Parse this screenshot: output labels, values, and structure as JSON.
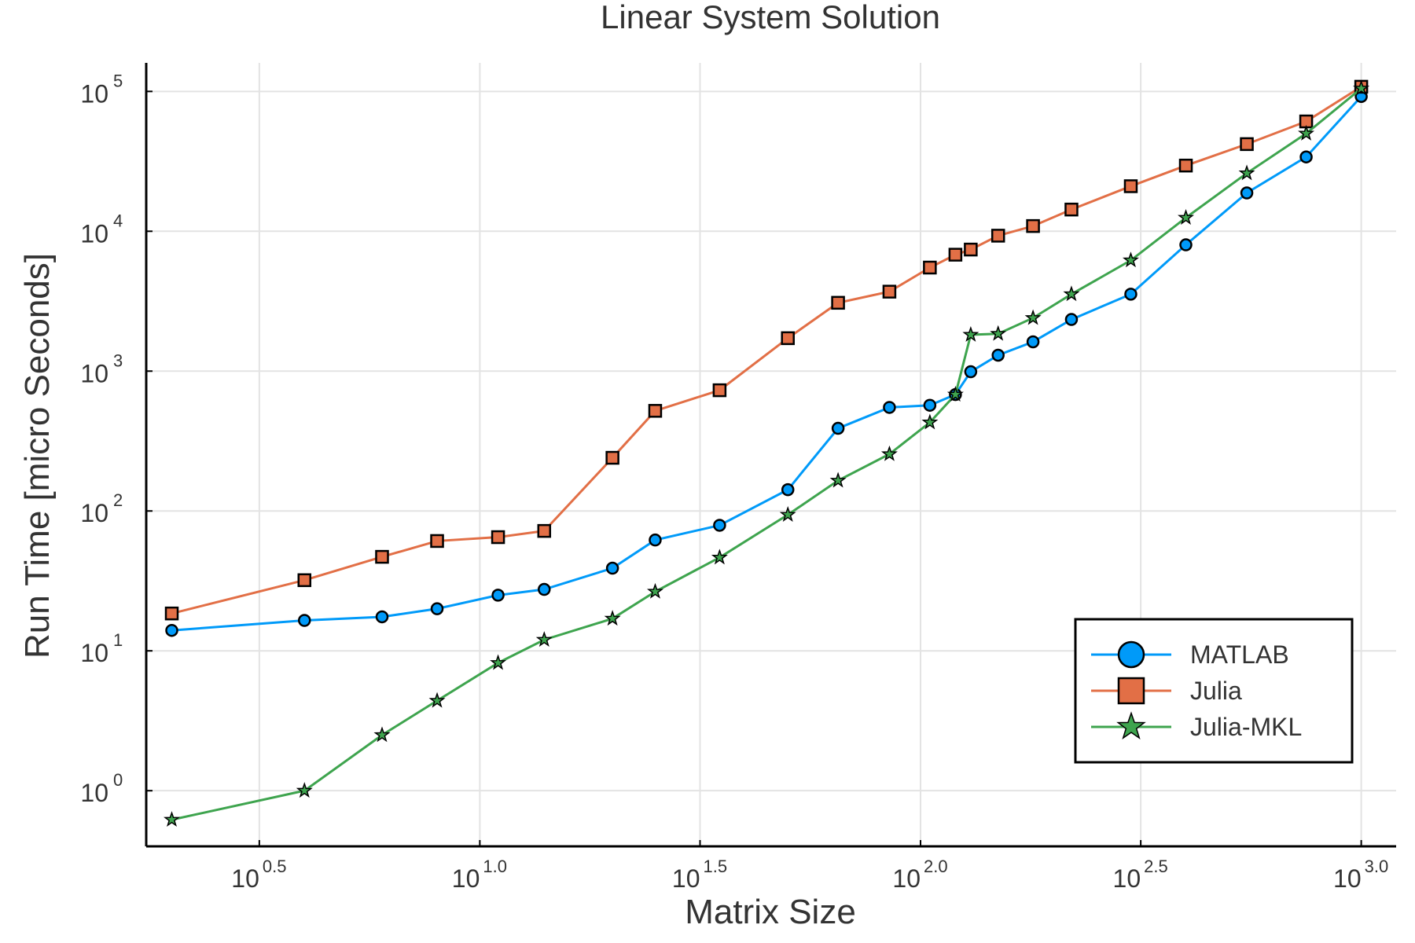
{
  "chart_data": {
    "type": "line",
    "title": "Linear System Solution",
    "xlabel": "Matrix Size",
    "ylabel": "Run Time  [micro Seconds]",
    "xscale": "log10",
    "yscale": "log10",
    "xlim": [
      1.75,
      1200
    ],
    "ylim": [
      0.4,
      160000
    ],
    "xticks": [
      {
        "base": "10",
        "exp": "0.5",
        "value": 3.16
      },
      {
        "base": "10",
        "exp": "1.0",
        "value": 10
      },
      {
        "base": "10",
        "exp": "1.5",
        "value": 31.6
      },
      {
        "base": "10",
        "exp": "2.0",
        "value": 100
      },
      {
        "base": "10",
        "exp": "2.5",
        "value": 316
      },
      {
        "base": "10",
        "exp": "3.0",
        "value": 1000
      }
    ],
    "yticks": [
      {
        "base": "10",
        "exp": "0",
        "value": 1
      },
      {
        "base": "10",
        "exp": "1",
        "value": 10
      },
      {
        "base": "10",
        "exp": "2",
        "value": 100
      },
      {
        "base": "10",
        "exp": "3",
        "value": 1000
      },
      {
        "base": "10",
        "exp": "4",
        "value": 10000
      },
      {
        "base": "10",
        "exp": "5",
        "value": 100000
      }
    ],
    "grid": true,
    "legend_position": "bottom-right",
    "x": [
      2,
      4,
      6,
      8,
      11,
      14,
      20,
      25,
      35,
      50,
      65,
      85,
      105,
      120,
      130,
      150,
      180,
      220,
      300,
      400,
      550,
      750,
      1000
    ],
    "series": [
      {
        "name": "MATLAB",
        "color": "#009af9",
        "marker": "circle",
        "values": [
          14,
          16.5,
          17.5,
          20,
          25,
          27.5,
          39,
          62,
          79,
          142,
          390,
          550,
          570,
          680,
          990,
          1300,
          1620,
          2340,
          3550,
          8000,
          18800,
          34000,
          92000
        ]
      },
      {
        "name": "Julia",
        "color": "#e26f46",
        "marker": "square",
        "values": [
          18.5,
          32,
          47,
          61,
          65,
          72,
          240,
          520,
          730,
          1720,
          3080,
          3700,
          5500,
          6800,
          7400,
          9300,
          10900,
          14300,
          21000,
          29500,
          42000,
          61000,
          108000
        ]
      },
      {
        "name": "Julia-MKL",
        "color": "#3ea44e",
        "marker": "star",
        "values": [
          0.62,
          1.0,
          2.5,
          4.4,
          8.2,
          12,
          17,
          26.5,
          46.5,
          94,
          165,
          255,
          430,
          680,
          1820,
          1850,
          2400,
          3550,
          6200,
          12500,
          26000,
          50000,
          105000
        ]
      }
    ]
  }
}
